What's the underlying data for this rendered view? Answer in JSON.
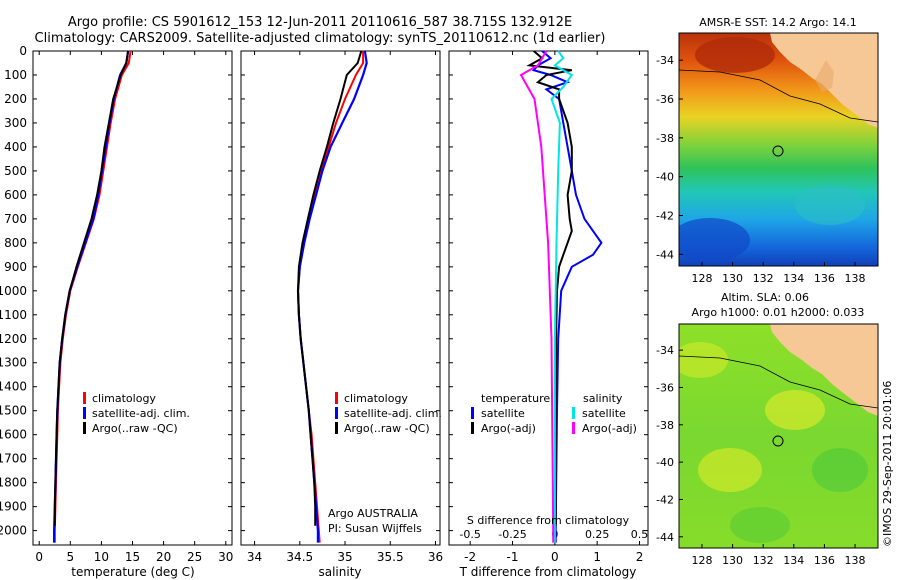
{
  "header": {
    "line1": "Argo profile: CS 5901612_153 12-Jun-2011 20110616_587 38.715S 132.912E",
    "line2": "Climatology: CARS2009. Satellite-adjusted climatology: synTS_20110612.nc (1d earlier)"
  },
  "colors": {
    "climatology": "#ff0000",
    "satellite": "#0000ff",
    "argo": "#000000",
    "sal_satellite": "#00e5e5",
    "sal_argo": "#ff00ff",
    "land": "#f6c896"
  },
  "chart_data": [
    {
      "type": "line",
      "id": "temperature",
      "xlabel": "temperature (deg C)",
      "ylabel": "",
      "xlim": [
        -1,
        31
      ],
      "ylim": [
        2060,
        0
      ],
      "xticks": [
        "0",
        "5",
        "10",
        "15",
        "20",
        "25",
        "30"
      ],
      "yticks": [
        "0",
        "100",
        "200",
        "300",
        "400",
        "500",
        "600",
        "700",
        "800",
        "900",
        "1000",
        "1100",
        "1200",
        "1300",
        "1400",
        "1500",
        "1600",
        "1700",
        "1800",
        "1900",
        "2000"
      ],
      "legend": [
        "climatology",
        "satellite-adj. clim.",
        "Argo(..raw -QC)"
      ],
      "series": [
        {
          "name": "climatology",
          "depth": [
            0,
            50,
            100,
            200,
            300,
            400,
            500,
            600,
            700,
            800,
            900,
            1000,
            1100,
            1200,
            1300,
            1400,
            1500,
            1600,
            1700,
            1800,
            1900,
            2000,
            2050
          ],
          "values": [
            14.7,
            14.4,
            13.3,
            12.2,
            11.5,
            10.9,
            10.3,
            9.7,
            8.8,
            7.5,
            6.2,
            5.0,
            4.3,
            3.8,
            3.4,
            3.2,
            3.0,
            2.9,
            2.8,
            2.7,
            2.6,
            2.5,
            2.5
          ]
        },
        {
          "name": "satellite-adj. clim.",
          "depth": [
            0,
            50,
            100,
            200,
            300,
            400,
            500,
            600,
            700,
            800,
            900,
            1000,
            1100,
            1200,
            1300,
            1400,
            1500,
            1600,
            1700,
            1800,
            1900,
            2000,
            2050
          ],
          "values": [
            14.3,
            14.0,
            13.0,
            12.0,
            11.3,
            10.7,
            10.1,
            9.5,
            8.7,
            7.4,
            6.1,
            4.9,
            4.2,
            3.7,
            3.3,
            3.1,
            2.9,
            2.8,
            2.7,
            2.6,
            2.5,
            2.4,
            2.4
          ]
        },
        {
          "name": "Argo(..raw -QC)",
          "depth": [
            0,
            50,
            100,
            200,
            300,
            400,
            500,
            600,
            700,
            800,
            900,
            1000,
            1100,
            1200,
            1300,
            1400,
            1500,
            1600,
            1700,
            1800,
            1900,
            1980
          ],
          "values": [
            14.3,
            14.0,
            13.1,
            11.9,
            11.2,
            10.5,
            10.0,
            9.3,
            8.4,
            7.2,
            6.0,
            4.9,
            4.2,
            3.7,
            3.3,
            3.1,
            2.9,
            2.8,
            2.7,
            2.6,
            2.5,
            2.5
          ]
        }
      ]
    },
    {
      "type": "line",
      "id": "salinity",
      "xlabel": "salinity",
      "xlim": [
        33.85,
        36.05
      ],
      "ylim": [
        2060,
        0
      ],
      "xticks": [
        "34",
        "34.5",
        "35",
        "35.5",
        "36"
      ],
      "legend": [
        "climatology",
        "satellite-adj. clim.",
        "Argo(..raw -QC)"
      ],
      "annotation": [
        "Argo AUSTRALIA",
        "PI: Susan Wijffels"
      ],
      "series": [
        {
          "name": "climatology",
          "depth": [
            0,
            50,
            100,
            200,
            300,
            400,
            500,
            600,
            700,
            800,
            900,
            1000,
            1100,
            1200,
            1300,
            1400,
            1500,
            1600,
            1700,
            1800,
            1900,
            2000,
            2050
          ],
          "values": [
            35.2,
            35.2,
            35.12,
            35.0,
            34.9,
            34.82,
            34.74,
            34.67,
            34.6,
            34.54,
            34.5,
            34.48,
            34.49,
            34.51,
            34.54,
            34.57,
            34.6,
            34.63,
            34.65,
            34.67,
            34.69,
            34.71,
            34.72
          ]
        },
        {
          "name": "satellite-adj. clim.",
          "depth": [
            0,
            50,
            100,
            200,
            300,
            400,
            500,
            600,
            700,
            800,
            900,
            1000,
            1100,
            1200,
            1300,
            1400,
            1500,
            1600,
            1700,
            1800,
            1900,
            2000,
            2050
          ],
          "values": [
            35.22,
            35.24,
            35.2,
            35.1,
            34.97,
            34.84,
            34.75,
            34.68,
            34.61,
            34.55,
            34.5,
            34.48,
            34.49,
            34.51,
            34.54,
            34.57,
            34.6,
            34.62,
            34.64,
            34.66,
            34.68,
            34.7,
            34.7
          ]
        },
        {
          "name": "Argo(..raw -QC)",
          "depth": [
            0,
            50,
            100,
            200,
            300,
            400,
            500,
            600,
            700,
            800,
            900,
            1000,
            1100,
            1200,
            1300,
            1400,
            1500,
            1600,
            1700,
            1800,
            1900,
            1980
          ],
          "values": [
            35.18,
            35.14,
            35.02,
            34.95,
            34.87,
            34.8,
            34.72,
            34.65,
            34.59,
            34.53,
            34.49,
            34.48,
            34.49,
            34.51,
            34.54,
            34.57,
            34.6,
            34.62,
            34.64,
            34.66,
            34.67,
            34.67
          ]
        }
      ]
    },
    {
      "type": "line",
      "id": "differences",
      "xlabel": "T difference from climatology",
      "xlabel_top": "S difference from climatology",
      "xlim": [
        -2.5,
        2.2
      ],
      "ylim": [
        2060,
        0
      ],
      "xticks": [
        "-2",
        "-1",
        "0",
        "1",
        "2"
      ],
      "sticks": [
        "-0.5",
        "-0.25",
        "0",
        "0.25",
        "0.5"
      ],
      "legend": {
        "temperature": {
          "title": "temperature",
          "items": [
            "satellite",
            "Argo(-adj)"
          ]
        },
        "salinity": {
          "title": "salinity",
          "items": [
            "satellite",
            "Argo(-adj)"
          ]
        }
      },
      "series": [
        {
          "name": "temperature satellite",
          "depth": [
            0,
            30,
            60,
            80,
            100,
            130,
            160,
            200,
            300,
            400,
            500,
            600,
            700,
            750,
            800,
            850,
            900,
            1000,
            1200,
            1500,
            2000,
            2050
          ],
          "values": [
            -0.3,
            -0.1,
            -0.4,
            -0.5,
            -0.1,
            0.3,
            -0.2,
            0.1,
            0.2,
            0.3,
            0.4,
            0.5,
            0.7,
            0.9,
            1.1,
            0.9,
            0.4,
            0.15,
            0.08,
            0.05,
            0.02,
            0.02
          ]
        },
        {
          "name": "temperature Argo(-adj)",
          "depth": [
            0,
            30,
            60,
            80,
            100,
            130,
            160,
            200,
            300,
            400,
            500,
            600,
            700,
            750,
            800,
            850,
            900,
            1000,
            1200,
            1500,
            1980
          ],
          "values": [
            -0.5,
            -0.3,
            -0.6,
            0.4,
            -0.2,
            -0.4,
            0.1,
            0.1,
            0.3,
            0.4,
            0.4,
            0.3,
            0.35,
            0.4,
            0.3,
            0.2,
            0.1,
            0.05,
            0.03,
            0.02,
            0.02
          ]
        },
        {
          "name": "salinity satellite",
          "depth": [
            0,
            30,
            60,
            100,
            150,
            200,
            300,
            500,
            800,
            1200,
            2000,
            2050
          ],
          "values": [
            0.02,
            0.05,
            0.0,
            0.1,
            0.05,
            -0.02,
            0.03,
            0.02,
            0.01,
            0.0,
            0.0,
            0.0
          ]
        },
        {
          "name": "salinity Argo(-adj)",
          "depth": [
            0,
            60,
            100,
            200,
            400,
            800,
            1200,
            2000,
            2050
          ],
          "values": [
            -0.05,
            -0.1,
            -0.2,
            -0.12,
            -0.08,
            -0.04,
            -0.02,
            -0.01,
            -0.01
          ]
        }
      ]
    },
    {
      "type": "heatmap",
      "id": "sst_map",
      "title": "AMSR-E SST: 14.2  Argo: 14.1",
      "xlim": [
        126.5,
        139.5
      ],
      "ylim": [
        -44.6,
        -32.6
      ],
      "xticks": [
        "128",
        "130",
        "132",
        "134",
        "136",
        "138"
      ],
      "yticks": [
        "-34",
        "-36",
        "-38",
        "-40",
        "-42",
        "-44"
      ],
      "marker": {
        "lon": 132.912,
        "lat": -38.715
      }
    },
    {
      "type": "heatmap",
      "id": "sla_map",
      "title": "Altim. SLA: 0.06",
      "subtitle": "Argo h1000: 0.01 h2000: 0.033",
      "xlim": [
        126.5,
        139.5
      ],
      "ylim": [
        -44.6,
        -32.6
      ],
      "xticks": [
        "128",
        "130",
        "132",
        "134",
        "136",
        "138"
      ],
      "yticks": [
        "-34",
        "-36",
        "-38",
        "-40",
        "-42",
        "-44"
      ],
      "marker": {
        "lon": 132.912,
        "lat": -38.715
      }
    }
  ],
  "credit": "©IMOS 29-Sep-2011 20:01:06"
}
